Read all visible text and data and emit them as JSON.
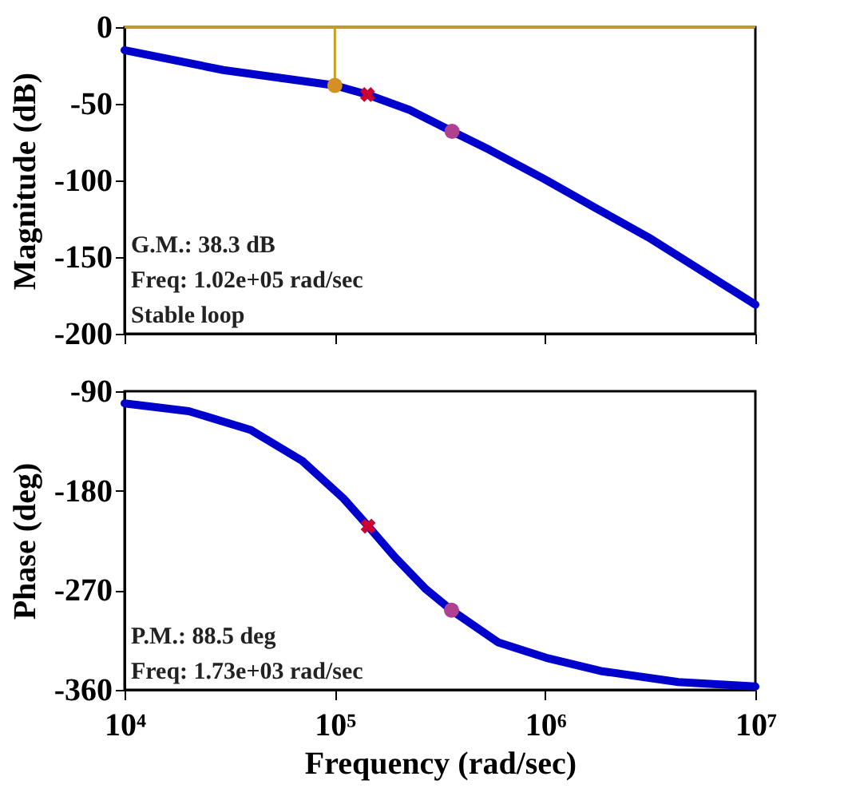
{
  "chart_data": [
    {
      "type": "line",
      "ylabel": "Magnitude (dB)",
      "xlim": [
        10000,
        10000000
      ],
      "xticks": [
        10000,
        100000,
        1000000,
        10000000
      ],
      "ylim": [
        -200,
        0
      ],
      "yticks": [
        -200,
        -150,
        -100,
        -50,
        0
      ],
      "log": "x",
      "grid": false,
      "tick_labels": "y",
      "series": [
        {
          "color": "#0000cc",
          "x": [
            10000,
            29500,
            100000,
            143000,
            227000,
            361000,
            543000,
            989000,
            1740000,
            3090000,
            5560000,
            10000000
          ],
          "values": [
            -15,
            -28,
            -38,
            -44,
            -54,
            -68,
            -80,
            -99,
            -118,
            -137,
            -159,
            -181
          ]
        },
        {
          "type": "line",
          "color": "#c8a020",
          "x": [
            100000,
            100000
          ],
          "values": [
            0,
            -38
          ]
        },
        {
          "type": "scatter",
          "marker": "circle",
          "color": "#d49020",
          "x": [
            100000
          ],
          "values": [
            -38
          ]
        },
        {
          "type": "scatter",
          "marker": "cross",
          "color": "#cc0033",
          "x": [
            143000
          ],
          "values": [
            -44
          ]
        },
        {
          "type": "scatter",
          "marker": "circle",
          "color": "#b04090",
          "x": [
            361000
          ],
          "values": [
            -68
          ]
        }
      ],
      "ref_lines": [
        {
          "axis": "y",
          "value": 0,
          "color": "#c8a020"
        }
      ],
      "annotations": [
        "G.M.: 38.3 dB",
        "Freq: 1.02e+05 rad/sec",
        "Stable loop"
      ]
    },
    {
      "type": "line",
      "xlabel": "Frequency (rad/sec)",
      "ylabel": "Phase (deg)",
      "xlim": [
        10000,
        10000000
      ],
      "xticks": [
        {
          "value": 10000,
          "label": "10⁴"
        },
        {
          "value": 100000,
          "label": "10⁵"
        },
        {
          "value": 1000000,
          "label": "10⁶"
        },
        {
          "value": 10000000,
          "label": "10⁷"
        }
      ],
      "ylim": [
        -360,
        -90
      ],
      "yticks": [
        -360,
        -270,
        -180,
        -90
      ],
      "log": "x",
      "grid": false,
      "series": [
        {
          "color": "#0000cc",
          "x": [
            10000,
            20200,
            39800,
            70000,
            110000,
            144000,
            193000,
            271000,
            359000,
            597000,
            1010000,
            1840000,
            4300000,
            10000000
          ],
          "values": [
            -101,
            -108,
            -125,
            -153,
            -187,
            -212,
            -240,
            -269,
            -288,
            -317,
            -331,
            -343,
            -353,
            -357
          ]
        },
        {
          "type": "scatter",
          "marker": "cross",
          "color": "#cc0033",
          "x": [
            144000
          ],
          "values": [
            -212
          ]
        },
        {
          "type": "scatter",
          "marker": "circle",
          "color": "#b04090",
          "x": [
            359000
          ],
          "values": [
            -288
          ]
        }
      ],
      "annotations": [
        "P.M.: 88.5 deg",
        "Freq: 1.73e+03 rad/sec"
      ]
    }
  ]
}
